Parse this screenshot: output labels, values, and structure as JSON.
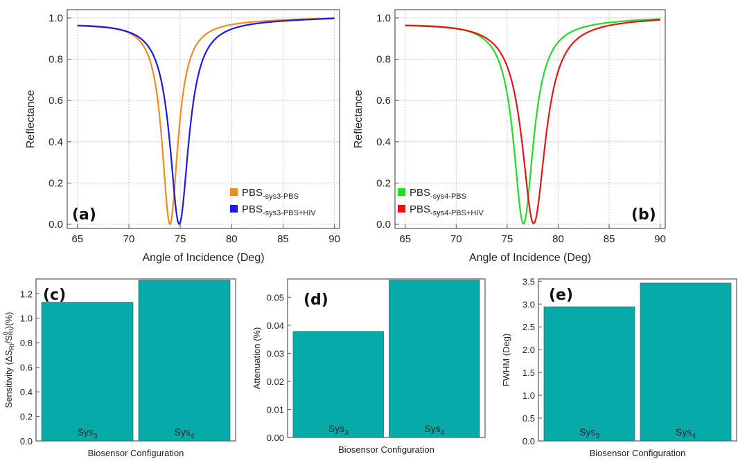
{
  "chart_data": [
    {
      "id": "a",
      "panel_label": "(a)",
      "type": "line",
      "xlabel": "Angle of Incidence (Deg)",
      "ylabel": "Reflectance",
      "xlim": [
        64,
        90.5
      ],
      "ylim": [
        -0.02,
        1.04
      ],
      "xticks": [
        65,
        70,
        75,
        80,
        85,
        90
      ],
      "yticks": [
        0.0,
        0.2,
        0.4,
        0.6,
        0.8,
        1.0
      ],
      "ytick_labels": [
        "0.0",
        "0.2",
        "0.4",
        "0.6",
        "0.8",
        "1.0"
      ],
      "grid": true,
      "legend_position": "bottom-right",
      "series": [
        {
          "name_main": "PBS",
          "name_sub": "-sys3-PBS",
          "color": "#f28a1e",
          "x0": 65,
          "x1": 90,
          "min_x": 74.0,
          "width": 1.9,
          "depth": 0.985,
          "base": 0.975,
          "slope": 0.00112
        },
        {
          "name_main": "PBS",
          "name_sub": "-sys3-PBS+HIV",
          "color": "#1a1ae6",
          "x0": 65,
          "x1": 90,
          "min_x": 74.9,
          "width": 2.25,
          "depth": 0.985,
          "base": 0.975,
          "slope": 0.00112
        }
      ]
    },
    {
      "id": "b",
      "panel_label": "(b)",
      "type": "line",
      "xlabel": "Angle of Incidence (Deg)",
      "ylabel": "Reflectance",
      "xlim": [
        64,
        90.5
      ],
      "ylim": [
        -0.02,
        1.04
      ],
      "xticks": [
        65,
        70,
        75,
        80,
        85,
        90
      ],
      "yticks": [
        0.0,
        0.2,
        0.4,
        0.6,
        0.8,
        1.0
      ],
      "ytick_labels": [
        "0.0",
        "0.2",
        "0.4",
        "0.6",
        "0.8",
        "1.0"
      ],
      "grid": true,
      "legend_position": "bottom-left",
      "series": [
        {
          "name_main": "PBS",
          "name_sub": "-sys4-PBS",
          "color": "#22dd22",
          "x0": 65,
          "x1": 90,
          "min_x": 76.6,
          "width": 2.4,
          "depth": 0.985,
          "base": 0.975,
          "slope": 0.00112
        },
        {
          "name_main": "PBS",
          "name_sub": "-sys4-PBS+HIV",
          "color": "#ee1111",
          "x0": 65,
          "x1": 90,
          "min_x": 77.6,
          "width": 2.8,
          "depth": 0.985,
          "base": 0.975,
          "slope": 0.00112
        }
      ]
    },
    {
      "id": "c",
      "panel_label": "(c)",
      "type": "bar",
      "xlabel": "Biosensor Configuration",
      "ylabel_parts": [
        "Sensitivity (ΔS",
        "RI",
        "/S",
        "0",
        "RI",
        ")(%)"
      ],
      "ylim": [
        0,
        1.32
      ],
      "yticks": [
        0.0,
        0.2,
        0.4,
        0.6,
        0.8,
        1.0,
        1.2
      ],
      "ytick_labels": [
        "0.0",
        "0.2",
        "0.4",
        "0.6",
        "0.8",
        "1.0",
        "1.2"
      ],
      "categories": [
        {
          "main": "Sys",
          "sub": "3"
        },
        {
          "main": "Sys",
          "sub": "4"
        }
      ],
      "values": [
        1.13,
        1.31
      ],
      "color": "#05aaa9"
    },
    {
      "id": "d",
      "panel_label": "(d)",
      "type": "bar",
      "xlabel": "Biosensor Configuration",
      "ylabel": "Attenuation (%)",
      "ylim": [
        0,
        0.0565
      ],
      "yticks": [
        0.0,
        0.01,
        0.02,
        0.03,
        0.04,
        0.05
      ],
      "ytick_labels": [
        "0.00",
        "0.01",
        "0.02",
        "0.03",
        "0.04",
        "0.05"
      ],
      "categories": [
        {
          "main": "Sys",
          "sub": "3"
        },
        {
          "main": "Sys",
          "sub": "4"
        }
      ],
      "values": [
        0.0378,
        0.0561
      ],
      "color": "#05aaa9"
    },
    {
      "id": "e",
      "panel_label": "(e)",
      "type": "bar",
      "xlabel": "Biosensor Configuration",
      "ylabel": "FWHM (Deg)",
      "ylim": [
        0,
        3.55
      ],
      "yticks": [
        0.0,
        0.5,
        1.0,
        1.5,
        2.0,
        2.5,
        3.0,
        3.5
      ],
      "ytick_labels": [
        "0.0",
        "0.5",
        "1.0",
        "1.5",
        "2.0",
        "2.5",
        "3.0",
        "3.5"
      ],
      "categories": [
        {
          "main": "Sys",
          "sub": "3"
        },
        {
          "main": "Sys",
          "sub": "4"
        }
      ],
      "values": [
        2.94,
        3.46
      ],
      "color": "#05aaa9"
    }
  ]
}
